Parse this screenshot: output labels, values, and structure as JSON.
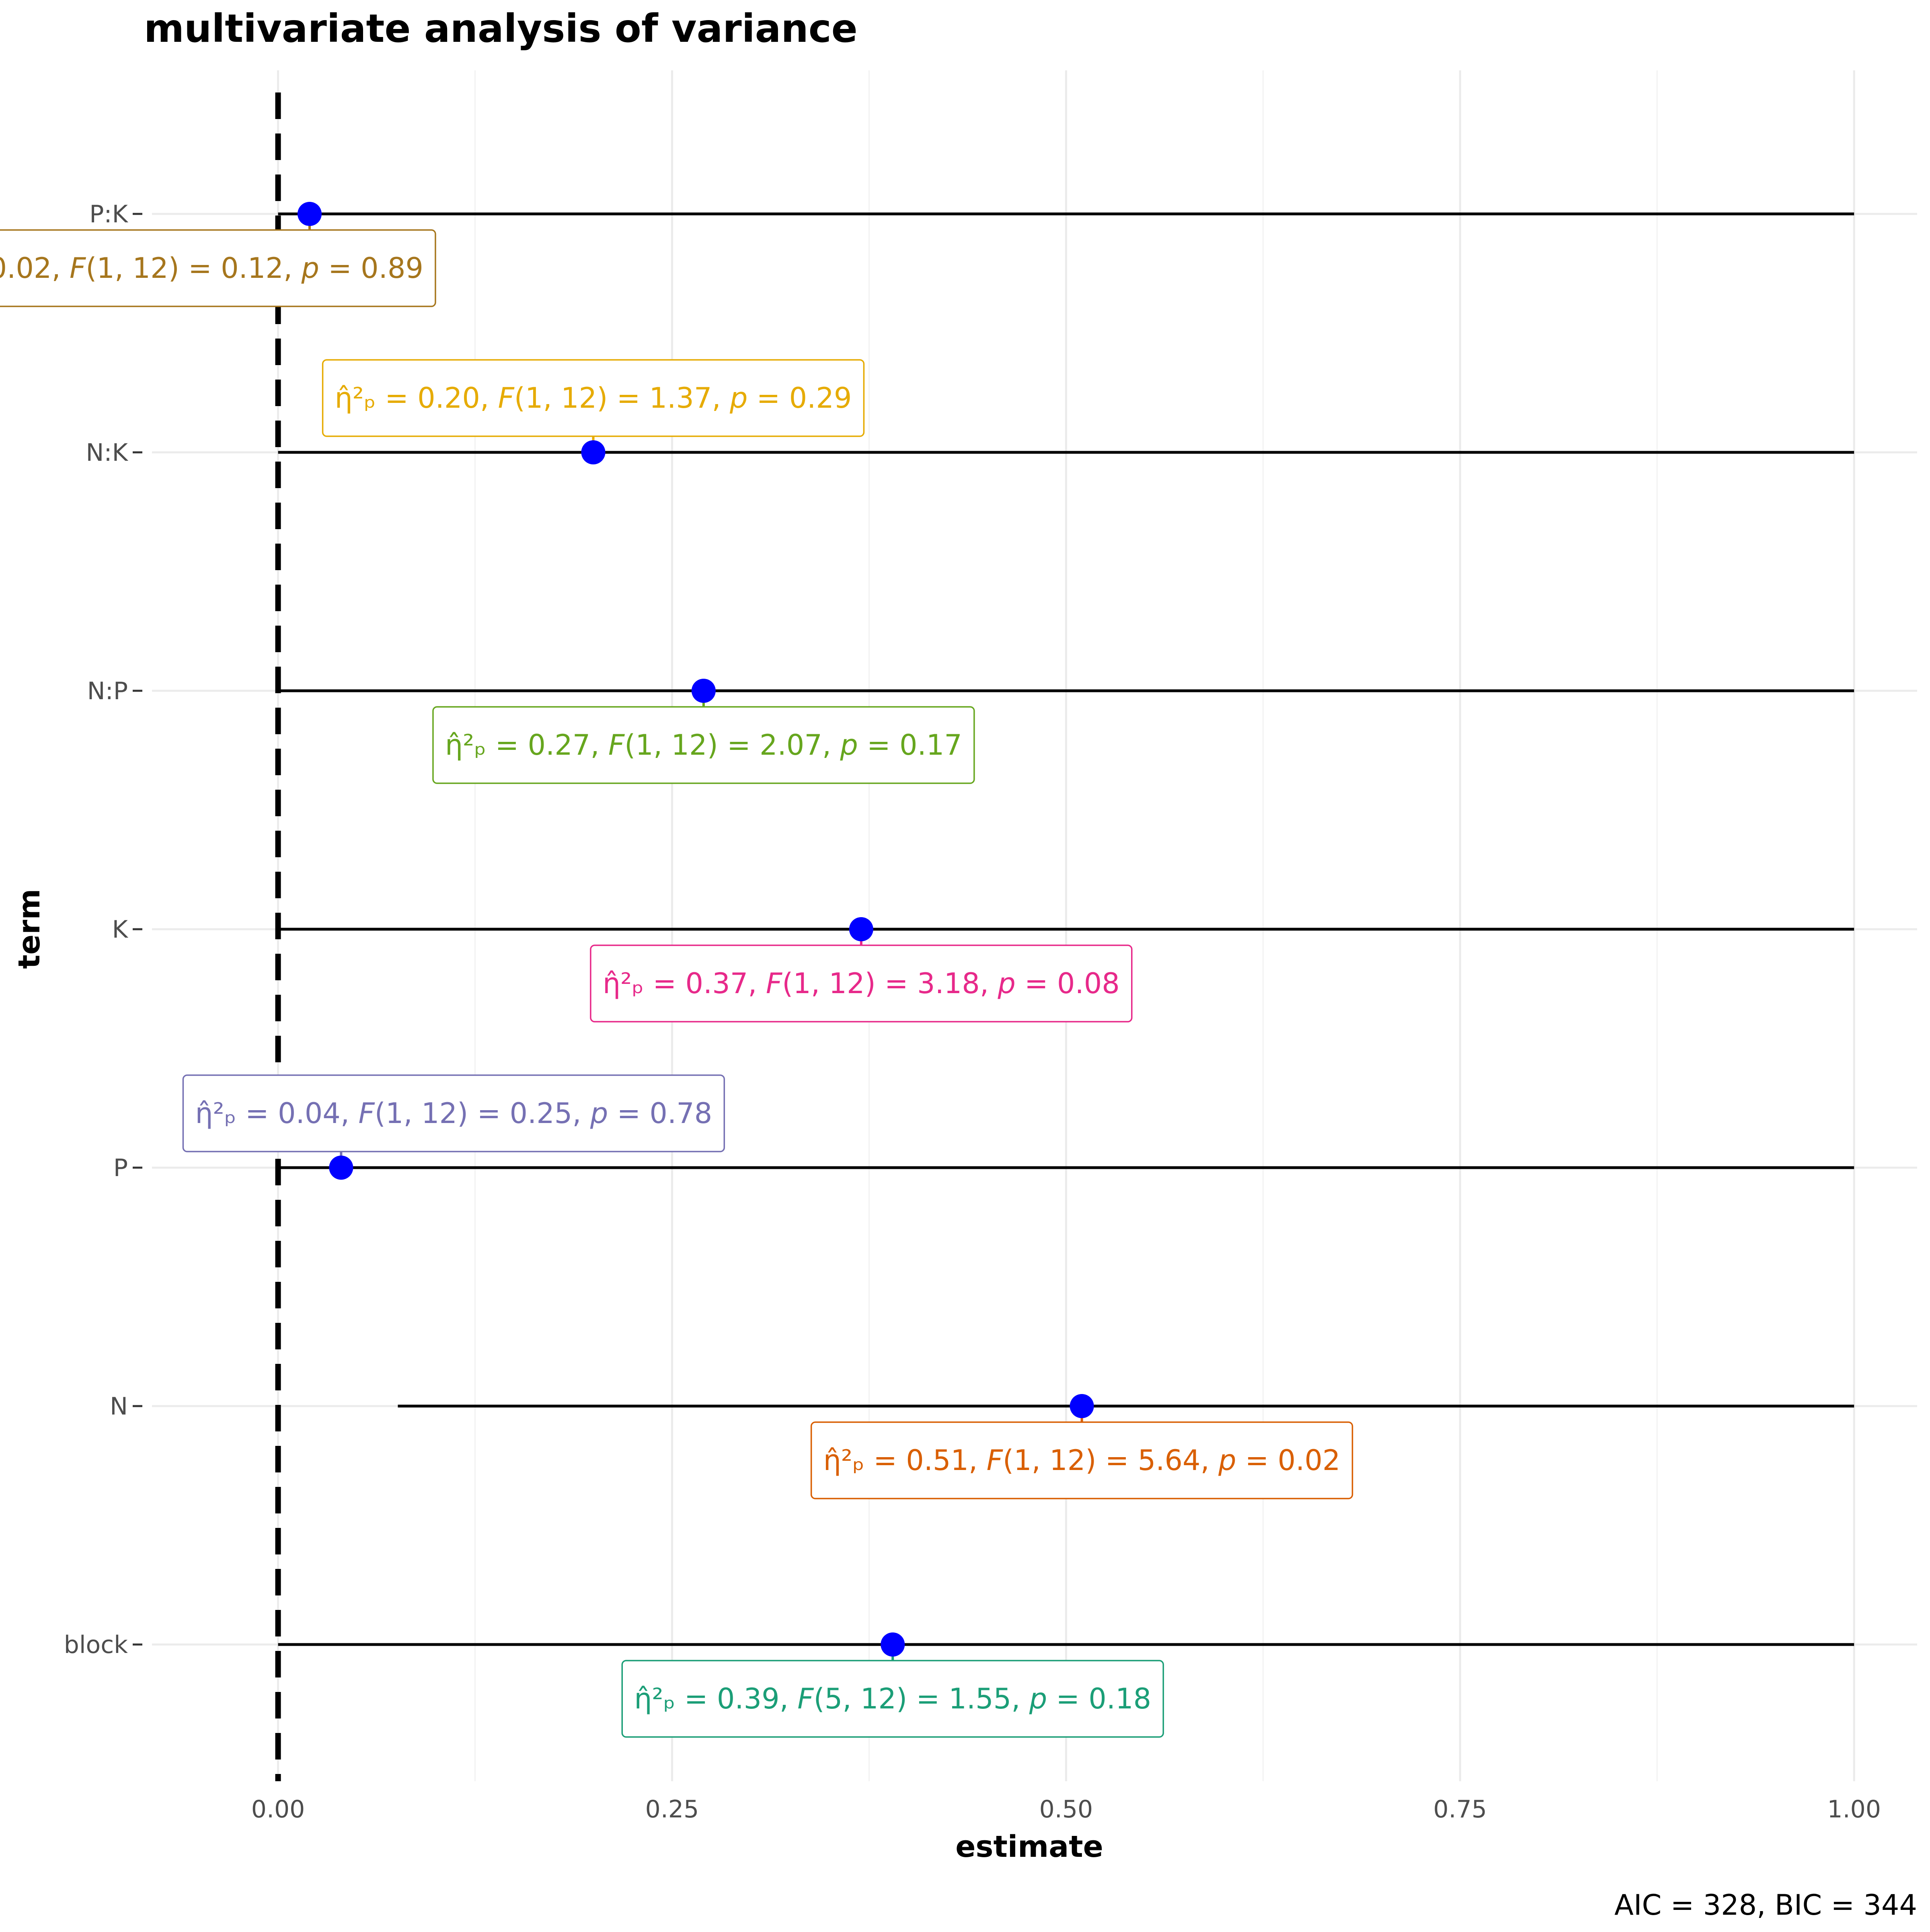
{
  "chart_data": {
    "type": "scatter",
    "title": "multivariate analysis of variance",
    "xlabel": "estimate",
    "ylabel": "term",
    "xlim": [
      -0.08,
      1.04
    ],
    "xticks": [
      0.0,
      0.25,
      0.5,
      0.75,
      1.0
    ],
    "xtick_labels": [
      "0.00",
      "0.25",
      "0.50",
      "0.75",
      "1.00"
    ],
    "grid": true,
    "reference_line": {
      "x": 0,
      "style": "dashed",
      "color": "#000000"
    },
    "point_color": "#0000ff",
    "caption": "AIC = 328, BIC = 344",
    "terms": [
      {
        "term": "P:K",
        "estimate": 0.02,
        "ci": [
          0.0,
          1.0
        ],
        "color": "#a6761d",
        "eta": "0.02",
        "df": "1, 12",
        "F": "0.12",
        "p": "0.89"
      },
      {
        "term": "N:K",
        "estimate": 0.2,
        "ci": [
          0.0,
          1.0
        ],
        "color": "#e6ab02",
        "eta": "0.20",
        "df": "1, 12",
        "F": "1.37",
        "p": "0.29"
      },
      {
        "term": "N:P",
        "estimate": 0.27,
        "ci": [
          0.0,
          1.0
        ],
        "color": "#66a61e",
        "eta": "0.27",
        "df": "1, 12",
        "F": "2.07",
        "p": "0.17"
      },
      {
        "term": "K",
        "estimate": 0.37,
        "ci": [
          0.0,
          1.0
        ],
        "color": "#e7298a",
        "eta": "0.37",
        "df": "1, 12",
        "F": "3.18",
        "p": "0.08"
      },
      {
        "term": "P",
        "estimate": 0.04,
        "ci": [
          0.0,
          1.0
        ],
        "color": "#7570b3",
        "eta": "0.04",
        "df": "1, 12",
        "F": "0.25",
        "p": "0.78"
      },
      {
        "term": "N",
        "estimate": 0.51,
        "ci": [
          0.076,
          1.0
        ],
        "color": "#d95f02",
        "eta": "0.51",
        "df": "1, 12",
        "F": "5.64",
        "p": "0.02"
      },
      {
        "term": "block",
        "estimate": 0.39,
        "ci": [
          0.0,
          1.0
        ],
        "color": "#1b9e77",
        "eta": "0.39",
        "df": "5, 12",
        "F": "1.55",
        "p": "0.18"
      }
    ]
  }
}
